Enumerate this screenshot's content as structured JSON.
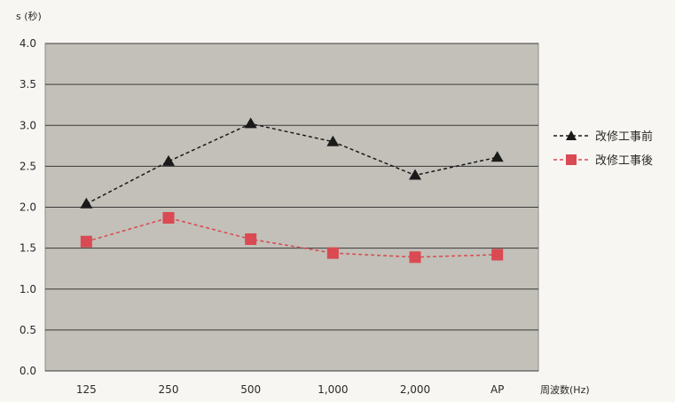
{
  "chart_data": {
    "type": "line",
    "ylabel": "s (秒)",
    "xlabel": "周波数(Hz)",
    "categories": [
      "125",
      "250",
      "500",
      "1,000",
      "2,000",
      "AP"
    ],
    "ylim": [
      0,
      4
    ],
    "yticks": [
      "0.0",
      "0.5",
      "1.0",
      "1.5",
      "2.0",
      "2.5",
      "3.0",
      "3.5",
      "4.0"
    ],
    "grid": true,
    "legend_position": "right",
    "series": [
      {
        "name": "改修工事前",
        "marker": "triangle",
        "color": "#1a1a1a",
        "values": [
          2.04,
          2.56,
          3.02,
          2.8,
          2.39,
          2.61
        ]
      },
      {
        "name": "改修工事後",
        "marker": "square",
        "color": "#d94a52",
        "values": [
          1.58,
          1.87,
          1.61,
          1.44,
          1.39,
          1.42
        ]
      }
    ],
    "plot_background": "#c2c0b8"
  }
}
